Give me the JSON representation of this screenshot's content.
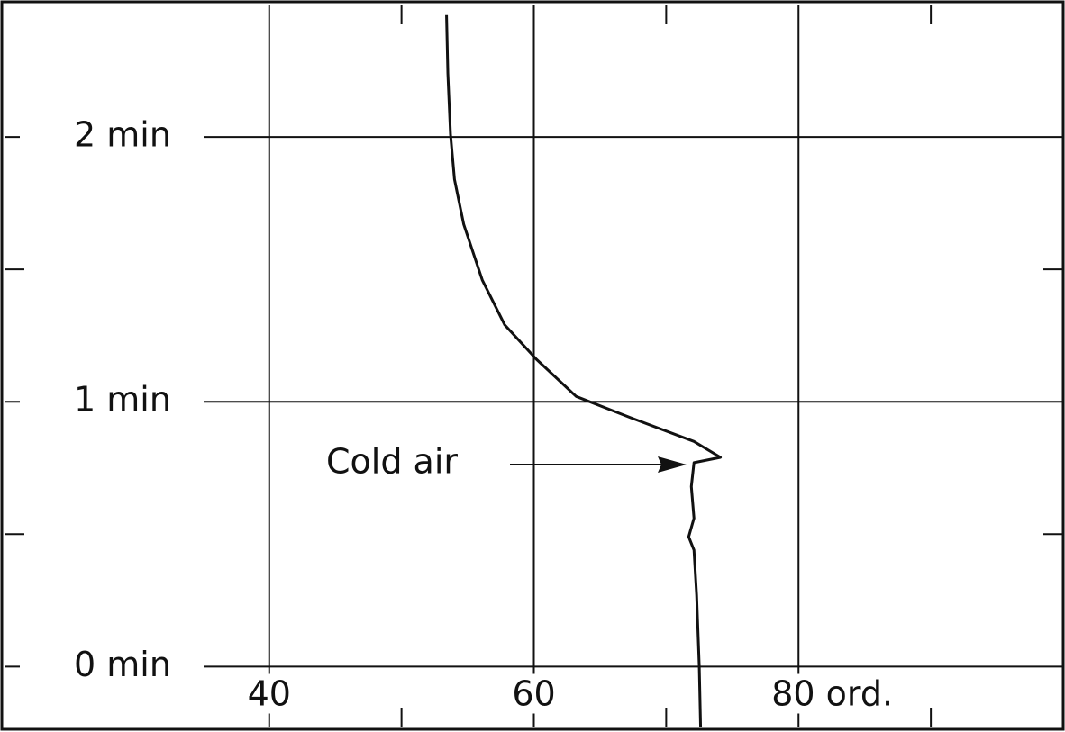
{
  "chart_data": {
    "type": "line",
    "annotation": "Cold air",
    "x": [
      72.6,
      72.5,
      72.3,
      72.1,
      71.7,
      72.1,
      71.9,
      72.1,
      74.1,
      72.1,
      67.3,
      63.2,
      60.2,
      57.8,
      56.1,
      54.7,
      54.0,
      53.7,
      53.5,
      53.4
    ],
    "series": [
      {
        "color": "#111111",
        "values": [
          -0.23,
          0,
          0.27,
          0.44,
          0.49,
          0.56,
          0.68,
          0.77,
          0.79,
          0.85,
          0.94,
          1.02,
          1.16,
          1.29,
          1.46,
          1.67,
          1.84,
          2.01,
          2.24,
          2.46
        ]
      }
    ],
    "xlim": [
      20,
      100
    ],
    "ylim": [
      -0.23,
      2.5
    ],
    "xticks": [
      40,
      60,
      {
        "value": 80,
        "label": "80 ord."
      }
    ],
    "yticks": [
      {
        "value": 0,
        "label": "0 min"
      },
      {
        "value": 1,
        "label": "1 min"
      },
      {
        "value": 2,
        "label": "2 min"
      }
    ],
    "xminorticks": [
      50,
      70,
      90
    ],
    "yminorticks": [
      0.5,
      1.5
    ],
    "grid": true
  }
}
